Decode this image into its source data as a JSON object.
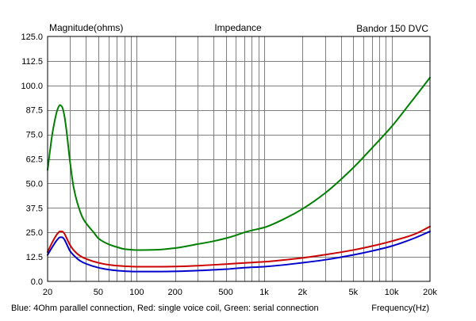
{
  "chart_data": {
    "type": "line",
    "title": "Impedance",
    "ylabel": "Magnitude(ohms)",
    "xlabel": "Frequency(Hz)",
    "model_label": "Bandor 150 DVC",
    "caption": "Blue: 4Ohm parallel connection, Red: single voice coil, Green: serial connection",
    "x_scale": "log",
    "xlim": [
      20,
      20000
    ],
    "ylim": [
      0,
      125
    ],
    "grid": true,
    "x_tick_values": [
      20,
      50,
      100,
      200,
      500,
      1000,
      2000,
      5000,
      10000,
      20000
    ],
    "x_tick_labels": [
      "20",
      "50",
      "100",
      "200",
      "500",
      "1k",
      "2k",
      "5k",
      "10k",
      "20k"
    ],
    "y_tick_values": [
      0,
      12.5,
      25,
      37.5,
      50,
      62.5,
      75,
      87.5,
      100,
      112.5,
      125
    ],
    "y_tick_labels": [
      "0.0",
      "12.5",
      "25.0",
      "37.5",
      "50.0",
      "62.5",
      "75.0",
      "87.5",
      "100.0",
      "112.5",
      "125.0"
    ],
    "series": [
      {
        "color": "#008000",
        "x": [
          20,
          22,
          24,
          25,
          26,
          27,
          28,
          30,
          32,
          35,
          38,
          42,
          46,
          50,
          60,
          70,
          80,
          100,
          150,
          200,
          300,
          400,
          500,
          600,
          700,
          800,
          1000,
          1500,
          2000,
          3000,
          5000,
          7000,
          10000,
          14000,
          20000
        ],
        "values": [
          57,
          77,
          88,
          90,
          89,
          85,
          78,
          61,
          48,
          38,
          32,
          28,
          25,
          22,
          19,
          17.5,
          16.5,
          16,
          16.2,
          17,
          19,
          20.5,
          22,
          23.5,
          25,
          26,
          27.5,
          32.5,
          37,
          45,
          58,
          68,
          79,
          91,
          104
        ]
      },
      {
        "color": "#cc0000",
        "x": [
          20,
          22,
          24,
          25,
          26,
          27,
          28,
          30,
          33,
          36,
          40,
          50,
          60,
          70,
          100,
          150,
          200,
          300,
          500,
          700,
          1000,
          2000,
          3000,
          5000,
          7000,
          10000,
          15000,
          20000
        ],
        "values": [
          15,
          20.5,
          24.5,
          25.5,
          25.5,
          24.5,
          22.5,
          18.5,
          15,
          13,
          11.5,
          9.5,
          8.5,
          8,
          7.5,
          7.5,
          7.6,
          8,
          8.8,
          9.4,
          10,
          12,
          13.6,
          16,
          18,
          20.5,
          24,
          28
        ]
      },
      {
        "color": "#0000cc",
        "x": [
          20,
          22,
          24,
          25,
          26,
          27,
          28,
          30,
          33,
          36,
          40,
          50,
          60,
          70,
          100,
          150,
          200,
          300,
          500,
          700,
          1000,
          2000,
          3000,
          5000,
          7000,
          10000,
          15000,
          20000
        ],
        "values": [
          13.5,
          18,
          21.5,
          22.5,
          22.5,
          21.5,
          19.5,
          15.5,
          12.5,
          10.5,
          9,
          7,
          6,
          5.5,
          5,
          5,
          5.1,
          5.5,
          6.2,
          7,
          7.5,
          9.5,
          11,
          13.5,
          15.5,
          18,
          22,
          25.5
        ]
      }
    ]
  }
}
